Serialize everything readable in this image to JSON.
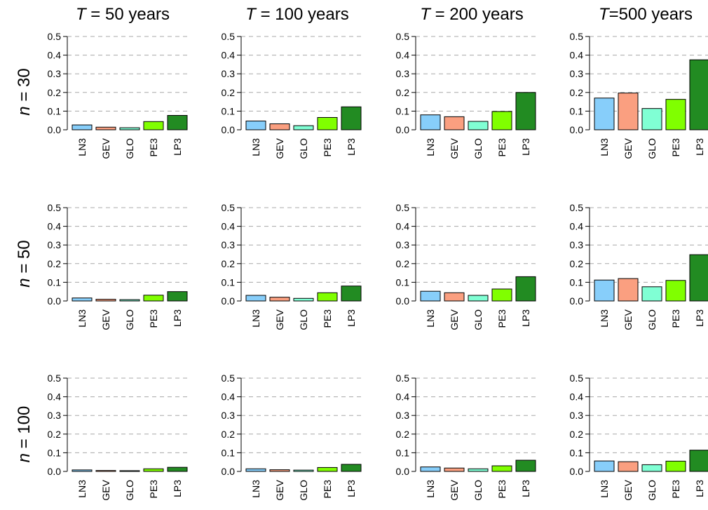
{
  "figure": {
    "columns": [
      {
        "T_symbol": "T",
        "T_rest": " = 50 years"
      },
      {
        "T_symbol": "T",
        "T_rest": " = 100 years"
      },
      {
        "T_symbol": "T",
        "T_rest": " = 200 years"
      },
      {
        "T_symbol": "T",
        "T_rest": "=500 years"
      }
    ],
    "rows": [
      {
        "n_symbol": "n",
        "n_rest": " = 30"
      },
      {
        "n_symbol": "n",
        "n_rest": " = 50"
      },
      {
        "n_symbol": "n",
        "n_rest": " = 100"
      }
    ]
  },
  "chart_data": {
    "type": "bar",
    "layout": "grid-3x4",
    "categories": [
      "LN3",
      "GEV",
      "GLO",
      "PE3",
      "LP3"
    ],
    "category_colors": [
      "#87cefa",
      "#fa9f80",
      "#80ffd4",
      "#80ff00",
      "#228b22"
    ],
    "y_ticks": [
      "0.0",
      "0.1",
      "0.2",
      "0.3",
      "0.4",
      "0.5"
    ],
    "ylim": [
      0,
      0.5
    ],
    "grid": "horizontal dashed",
    "panels": [
      [
        {
          "values": [
            0.026,
            0.014,
            0.011,
            0.044,
            0.077
          ]
        },
        {
          "values": [
            0.047,
            0.032,
            0.022,
            0.066,
            0.123
          ]
        },
        {
          "values": [
            0.08,
            0.07,
            0.045,
            0.098,
            0.2
          ]
        },
        {
          "values": [
            0.17,
            0.197,
            0.114,
            0.163,
            0.375
          ]
        }
      ],
      [
        {
          "values": [
            0.016,
            0.009,
            0.007,
            0.031,
            0.05
          ]
        },
        {
          "values": [
            0.03,
            0.02,
            0.014,
            0.044,
            0.08
          ]
        },
        {
          "values": [
            0.052,
            0.044,
            0.03,
            0.064,
            0.13
          ]
        },
        {
          "values": [
            0.112,
            0.12,
            0.076,
            0.11,
            0.248
          ]
        }
      ],
      [
        {
          "values": [
            0.008,
            0.005,
            0.004,
            0.014,
            0.022
          ]
        },
        {
          "values": [
            0.014,
            0.009,
            0.007,
            0.021,
            0.038
          ]
        },
        {
          "values": [
            0.024,
            0.018,
            0.014,
            0.03,
            0.06
          ]
        },
        {
          "values": [
            0.056,
            0.052,
            0.036,
            0.055,
            0.114
          ]
        }
      ]
    ]
  }
}
